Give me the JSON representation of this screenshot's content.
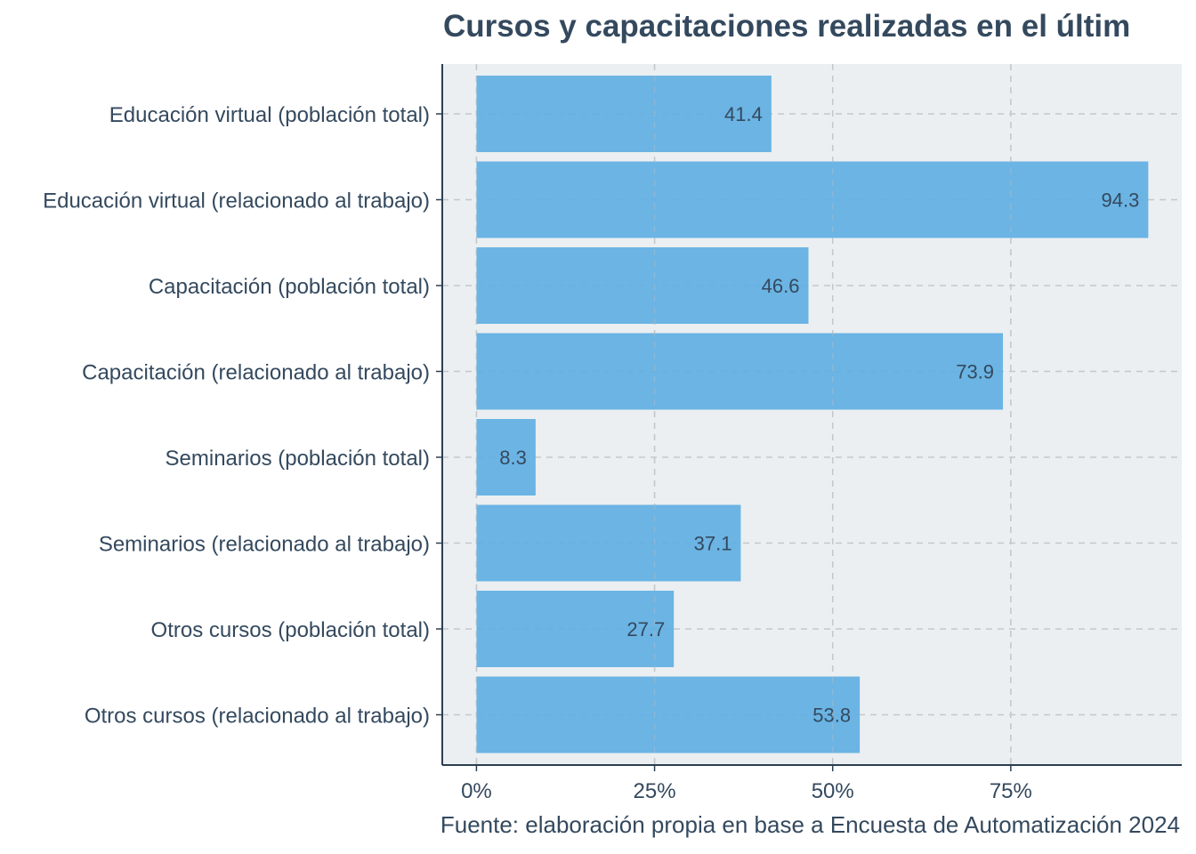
{
  "chart_data": {
    "type": "bar",
    "orientation": "horizontal",
    "title": "Cursos y capacitaciones realizadas en el últim",
    "caption": "Fuente: elaboración propia en base a Encuesta de Automatización 2024",
    "categories": [
      "Educación virtual (población total)",
      "Educación virtual (relacionado al trabajo)",
      "Capacitación (población total)",
      "Capacitación (relacionado al trabajo)",
      "Seminarios (población total)",
      "Seminarios (relacionado al trabajo)",
      "Otros cursos (población total)",
      "Otros cursos (relacionado al trabajo)"
    ],
    "values": [
      41.4,
      94.3,
      46.6,
      73.9,
      8.3,
      37.1,
      27.7,
      53.8
    ],
    "data_labels": [
      "41.4",
      "94.3",
      "46.6",
      "73.9",
      "8.3",
      "37.1",
      "27.7",
      "53.8"
    ],
    "x_ticks": [
      0,
      25,
      50,
      75
    ],
    "x_tick_labels": [
      "0%",
      "25%",
      "50%",
      "75%"
    ],
    "xlim": [
      -4.8,
      99
    ],
    "grid": true,
    "bar_color": "#5dade2",
    "panel_background": "#ebeff1",
    "text_color": "#34495e"
  }
}
